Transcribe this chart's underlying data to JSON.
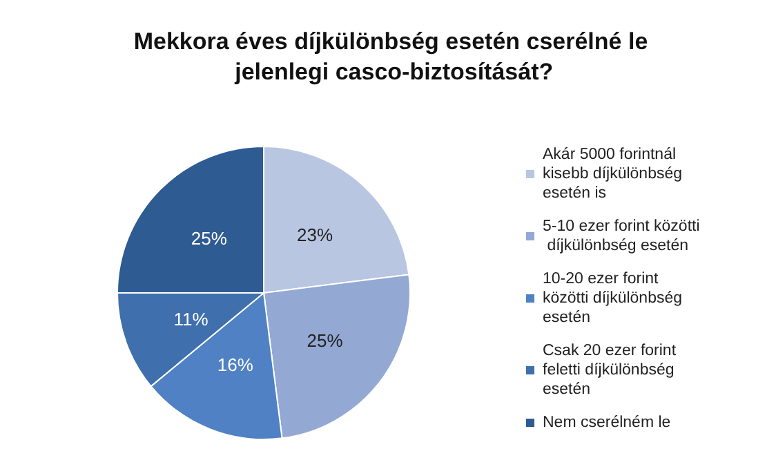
{
  "chart_data": {
    "type": "pie",
    "title": "Mekkora éves díjkülönbség esetén cserélné le jelenlegi casco-biztosítását?",
    "categories": [
      "Akár 5000 forintnál kisebb díjkülönbség esetén is",
      "5-10 ezer forint közötti díjkülönbség esetén",
      "10-20 ezer forint közötti díjkülönbség esetén",
      "Csak 20 ezer forint feletti díjkülönbség esetén",
      "Nem cserélném le"
    ],
    "values": [
      23,
      25,
      16,
      11,
      25
    ],
    "colors": [
      "#b9c6e2",
      "#93a9d4",
      "#4f81c4",
      "#3f6fad",
      "#2f5b93"
    ],
    "value_labels": [
      "23%",
      "25%",
      "16%",
      "11%",
      "25%"
    ],
    "legend": "right"
  }
}
